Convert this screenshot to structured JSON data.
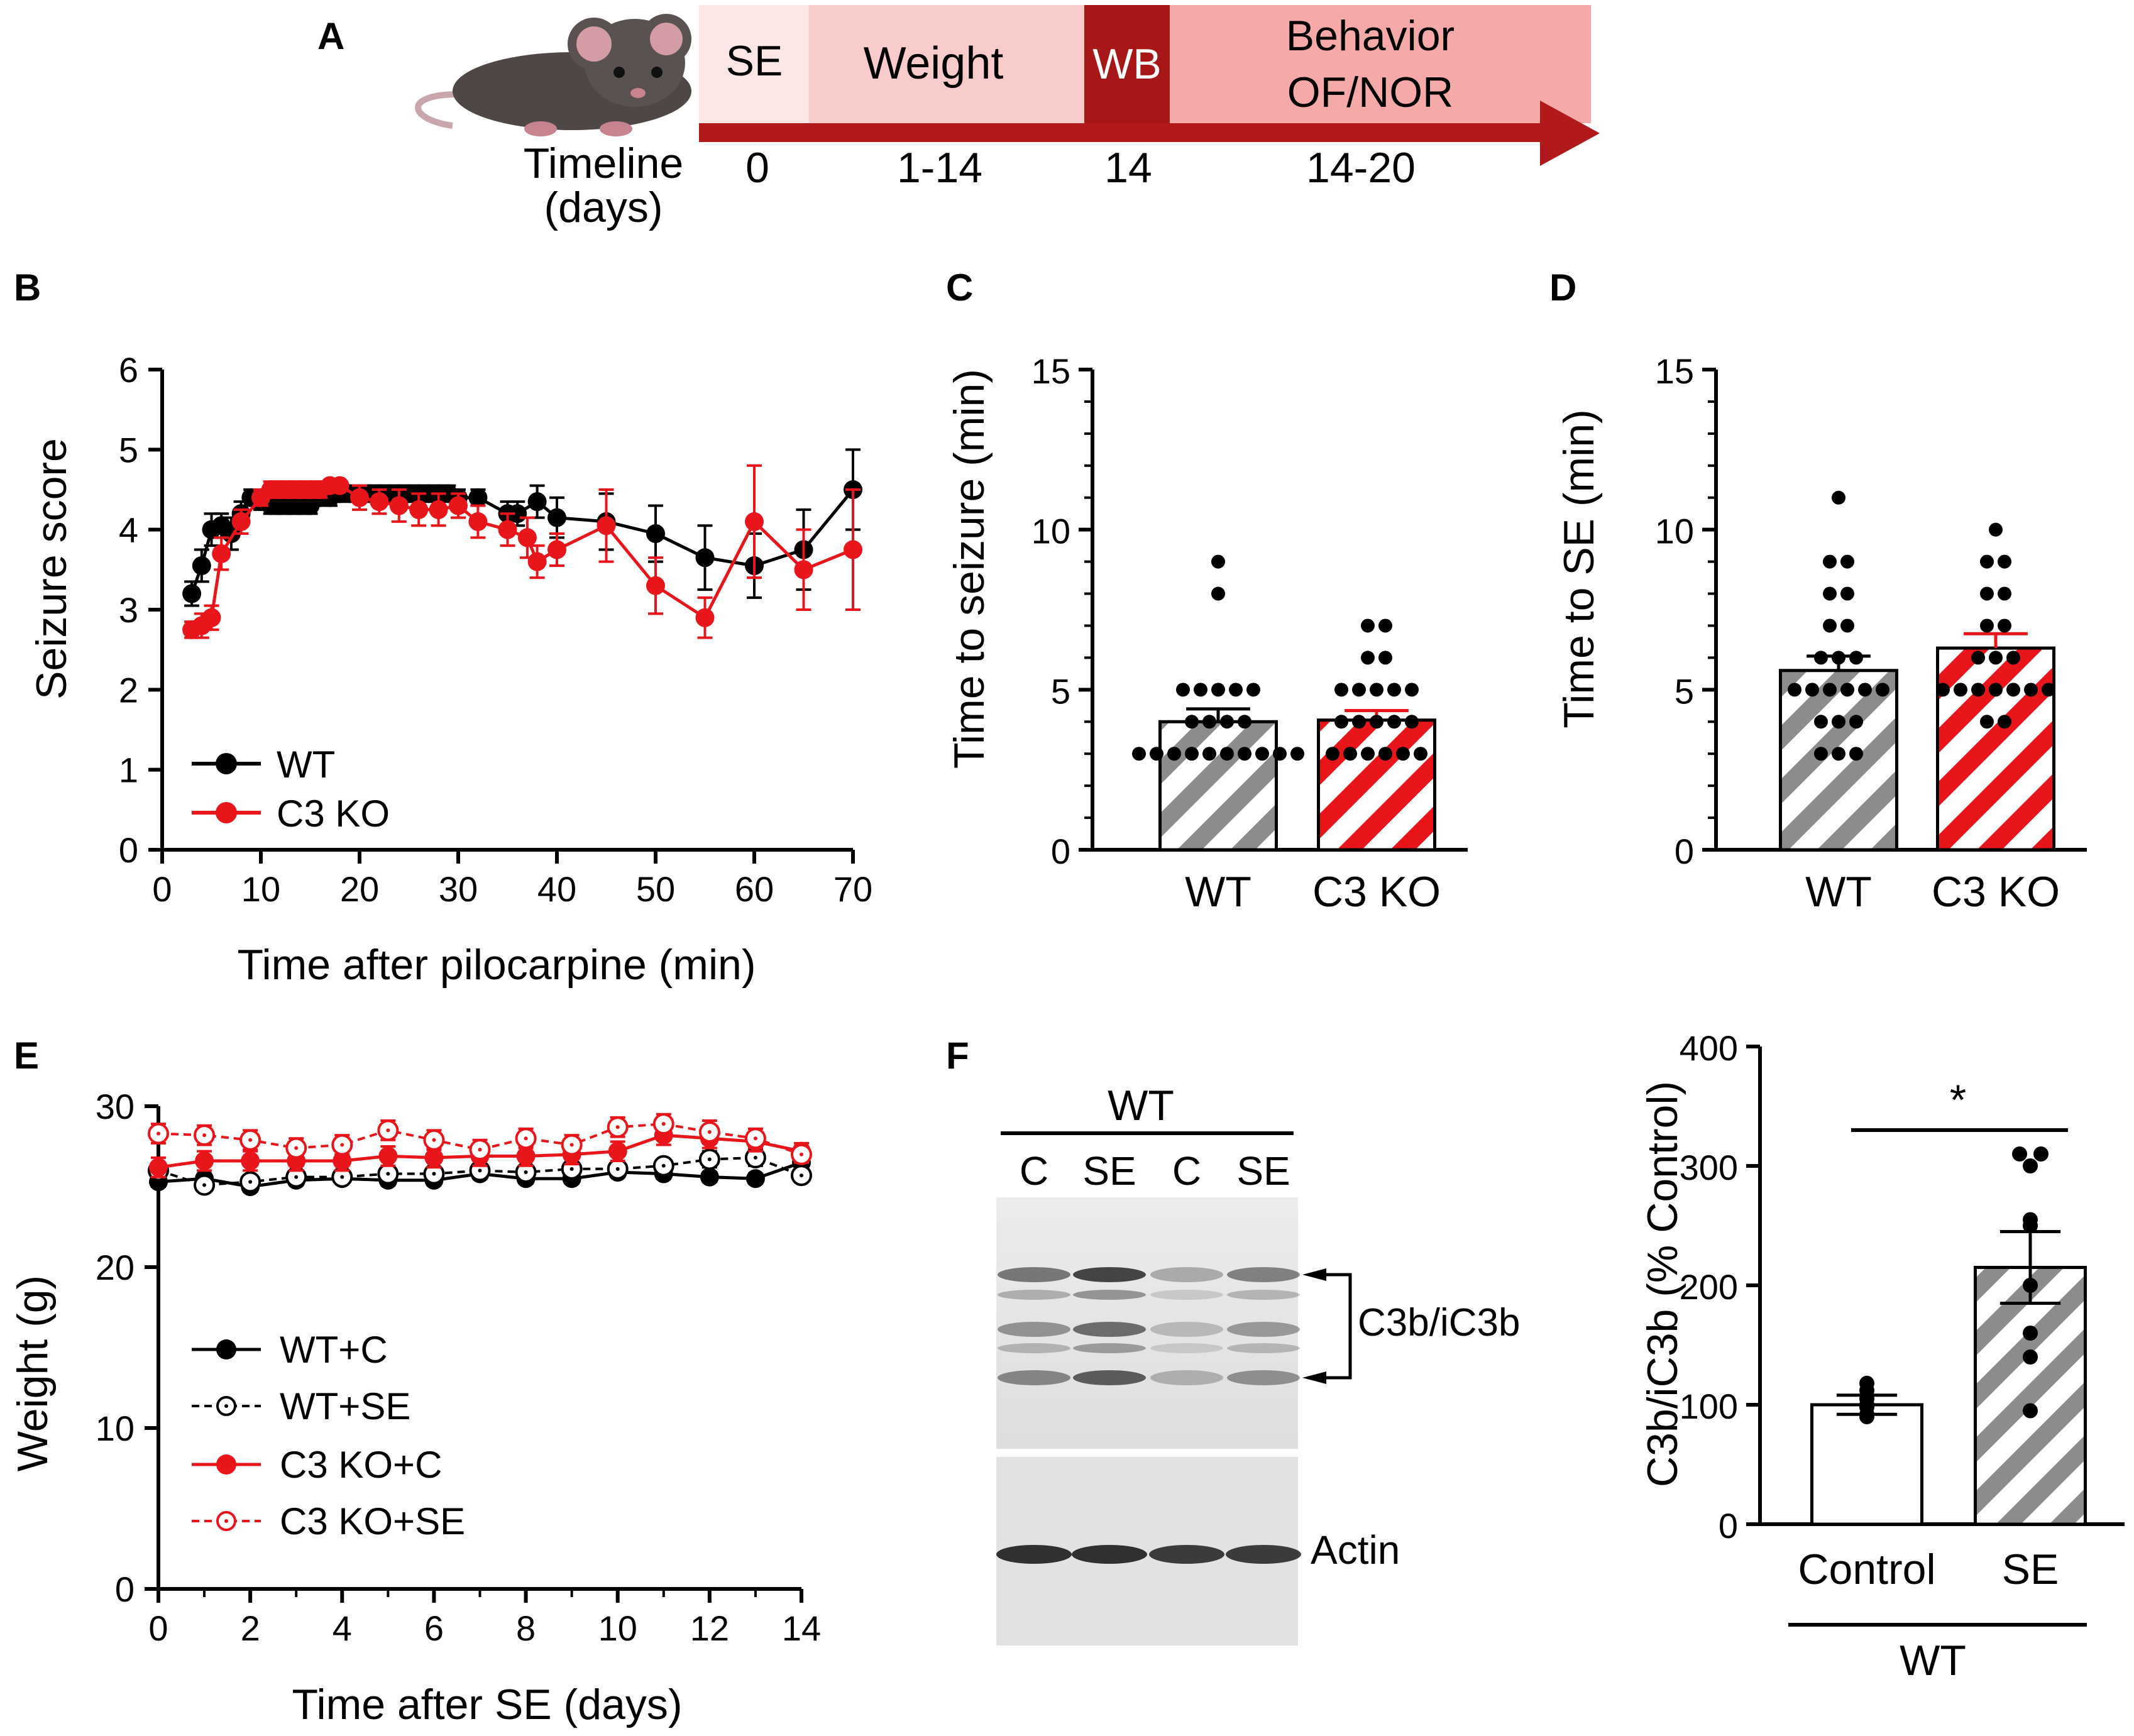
{
  "figure": {
    "panel_labels": [
      "A",
      "B",
      "C",
      "D",
      "E",
      "F"
    ],
    "colors": {
      "wt": "#000000",
      "c3ko": "#e8151b",
      "hatch_gray": "#8c8c8c",
      "timeline_arrow": "#b2191a",
      "timeline_se": "#fde6e6",
      "timeline_weight": "#f9cccc",
      "timeline_wb": "#a81717",
      "timeline_behavior": "#f6a9a9"
    }
  },
  "timeline": {
    "icon": "mouse-icon",
    "segments": [
      {
        "label": "SE",
        "day": "0"
      },
      {
        "label": "Weight",
        "day": "1-14"
      },
      {
        "label": "WB",
        "day": "14"
      },
      {
        "label": "Behavior",
        "label2": "OF/NOR",
        "day": "14-20"
      }
    ],
    "axis_label": "Timeline",
    "axis_label2": "(days)"
  },
  "chart_data": [
    {
      "id": "B",
      "type": "line",
      "xlabel": "Time after pilocarpine (min)",
      "ylabel": "Seizure score",
      "xlim": [
        0,
        70
      ],
      "ylim": [
        0,
        6
      ],
      "xticks": [
        0,
        10,
        20,
        30,
        40,
        50,
        60,
        70
      ],
      "yticks": [
        0,
        1,
        2,
        3,
        4,
        5,
        6
      ],
      "legend": "bottom-left",
      "series": [
        {
          "name": "WT",
          "color": "#000000",
          "x": [
            3,
            4,
            5,
            6,
            7,
            8,
            9,
            10,
            11,
            12,
            13,
            14,
            15,
            16,
            17,
            18,
            19,
            20,
            21,
            22,
            23,
            24,
            25,
            26,
            27,
            28,
            29,
            30,
            32,
            35,
            36,
            38,
            40,
            45,
            50,
            55,
            60,
            65,
            70
          ],
          "y": [
            3.2,
            3.55,
            4.0,
            4.05,
            3.95,
            4.2,
            4.4,
            4.35,
            4.3,
            4.3,
            4.3,
            4.3,
            4.3,
            4.4,
            4.4,
            4.45,
            4.45,
            4.45,
            4.45,
            4.45,
            4.45,
            4.45,
            4.45,
            4.45,
            4.45,
            4.45,
            4.45,
            4.4,
            4.4,
            4.2,
            4.2,
            4.35,
            4.15,
            4.1,
            3.95,
            3.65,
            3.55,
            3.75,
            4.5
          ],
          "err": [
            0.15,
            0.2,
            0.2,
            0.15,
            0.2,
            0.15,
            0.1,
            0.1,
            0.1,
            0.1,
            0.1,
            0.1,
            0.1,
            0.1,
            0.1,
            0.1,
            0.1,
            0.1,
            0.1,
            0.1,
            0.1,
            0.1,
            0.1,
            0.1,
            0.1,
            0.1,
            0.1,
            0.1,
            0.1,
            0.15,
            0.15,
            0.2,
            0.25,
            0.35,
            0.35,
            0.4,
            0.4,
            0.5,
            0.5
          ]
        },
        {
          "name": "C3 KO",
          "color": "#e8151b",
          "x": [
            3,
            4,
            5,
            6,
            8,
            10,
            11,
            12,
            13,
            14,
            15,
            16,
            17,
            18,
            20,
            22,
            24,
            26,
            28,
            30,
            32,
            35,
            37,
            38,
            40,
            45,
            50,
            55,
            60,
            65,
            70
          ],
          "y": [
            2.75,
            2.8,
            2.9,
            3.7,
            4.1,
            4.4,
            4.5,
            4.5,
            4.5,
            4.5,
            4.5,
            4.5,
            4.55,
            4.55,
            4.4,
            4.35,
            4.3,
            4.25,
            4.25,
            4.3,
            4.1,
            4.0,
            3.9,
            3.6,
            3.75,
            4.05,
            3.3,
            2.9,
            4.1,
            3.5,
            3.75
          ],
          "err": [
            0.1,
            0.15,
            0.15,
            0.2,
            0.15,
            0.1,
            0.1,
            0.1,
            0.1,
            0.1,
            0.1,
            0.1,
            0.05,
            0.05,
            0.15,
            0.15,
            0.2,
            0.2,
            0.2,
            0.15,
            0.2,
            0.2,
            0.25,
            0.2,
            0.2,
            0.45,
            0.35,
            0.25,
            0.7,
            0.5,
            0.75
          ]
        }
      ]
    },
    {
      "id": "C",
      "type": "bar",
      "ylabel": "Time to seizure (min)",
      "ylim": [
        0,
        15
      ],
      "yticks": [
        0,
        5,
        10,
        15
      ],
      "categories": [
        "WT",
        "C3 KO"
      ],
      "values": [
        4.0,
        4.05
      ],
      "sem": [
        0.4,
        0.3
      ],
      "points": [
        [
          9,
          8,
          5,
          5,
          5,
          5,
          5,
          4,
          4,
          4,
          4,
          3,
          3,
          3,
          3,
          3,
          3,
          3,
          3,
          3,
          3
        ],
        [
          7,
          7,
          6,
          6,
          5,
          5,
          5,
          5,
          5,
          4,
          4,
          4,
          4,
          4,
          3,
          3,
          3,
          3,
          3,
          3
        ]
      ]
    },
    {
      "id": "D",
      "type": "bar",
      "ylabel": "Time to SE (min)",
      "ylim": [
        0,
        15
      ],
      "yticks": [
        0,
        5,
        10,
        15
      ],
      "categories": [
        "WT",
        "C3 KO"
      ],
      "values": [
        5.6,
        6.3
      ],
      "sem": [
        0.45,
        0.45
      ],
      "points": [
        [
          11,
          9,
          9,
          8,
          8,
          7,
          7,
          6,
          6,
          6,
          5,
          5,
          5,
          5,
          5,
          5,
          4,
          4,
          4,
          3,
          3,
          3
        ],
        [
          10,
          9,
          9,
          8,
          8,
          7,
          7,
          6,
          6,
          6,
          5,
          5,
          5,
          5,
          5,
          5,
          5,
          4,
          4
        ]
      ]
    },
    {
      "id": "E",
      "type": "line",
      "xlabel": "Time after SE (days)",
      "ylabel": "Weight (g)",
      "xlim": [
        0,
        14
      ],
      "ylim": [
        0,
        30
      ],
      "xticks": [
        0,
        2,
        4,
        6,
        8,
        10,
        12,
        14
      ],
      "yticks": [
        0,
        10,
        20,
        30
      ],
      "legend": "bottom-left",
      "x": [
        0,
        1,
        2,
        3,
        4,
        5,
        6,
        7,
        8,
        9,
        10,
        11,
        12,
        13,
        14
      ],
      "series": [
        {
          "name": "WT+C",
          "color": "#000000",
          "filled": true,
          "dashed": false,
          "values": [
            25.3,
            25.5,
            25.0,
            25.4,
            25.5,
            25.4,
            25.4,
            25.8,
            25.5,
            25.5,
            25.9,
            25.8,
            25.6,
            25.5,
            26.5
          ],
          "err": [
            0.3,
            0.3,
            0.3,
            0.3,
            0.3,
            0.3,
            0.3,
            0.3,
            0.3,
            0.3,
            0.3,
            0.3,
            0.3,
            0.3,
            0.3
          ]
        },
        {
          "name": "WT+SE",
          "color": "#000000",
          "filled": false,
          "dashed": true,
          "values": [
            26.0,
            25.1,
            25.3,
            25.6,
            25.6,
            25.8,
            25.8,
            26.0,
            25.9,
            26.1,
            26.1,
            26.3,
            26.7,
            26.8,
            25.7
          ],
          "err": [
            0.4,
            0.4,
            0.4,
            0.4,
            0.4,
            0.4,
            0.4,
            0.4,
            0.4,
            0.4,
            0.4,
            0.4,
            0.5,
            0.5,
            0.4
          ]
        },
        {
          "name": "C3 KO+C",
          "color": "#e8151b",
          "filled": true,
          "dashed": false,
          "values": [
            26.2,
            26.6,
            26.6,
            26.6,
            26.6,
            26.9,
            26.8,
            26.9,
            26.9,
            27.0,
            27.2,
            28.2,
            28.0,
            27.8,
            27.2
          ],
          "err": [
            0.6,
            0.6,
            0.6,
            0.6,
            0.6,
            0.6,
            0.6,
            0.6,
            0.6,
            0.6,
            0.6,
            0.6,
            0.6,
            0.6,
            0.5
          ]
        },
        {
          "name": "C3 KO+SE",
          "color": "#e8151b",
          "filled": false,
          "dashed": true,
          "values": [
            28.3,
            28.2,
            27.9,
            27.4,
            27.6,
            28.5,
            27.9,
            27.3,
            28.0,
            27.6,
            28.7,
            28.9,
            28.4,
            28.0,
            27.0
          ],
          "err": [
            0.6,
            0.6,
            0.6,
            0.6,
            0.6,
            0.6,
            0.6,
            0.6,
            0.6,
            0.6,
            0.6,
            0.6,
            0.7,
            0.6,
            0.5
          ]
        }
      ]
    },
    {
      "id": "F-quant",
      "type": "bar",
      "ylabel": "C3b/iC3b (% Control)",
      "ylim": [
        0,
        400
      ],
      "yticks": [
        0,
        100,
        200,
        300,
        400
      ],
      "categories": [
        "Control",
        "SE"
      ],
      "group_label": "WT",
      "values": [
        100,
        215
      ],
      "sem": [
        8,
        30
      ],
      "points": [
        [
          118,
          112,
          105,
          100,
          98,
          92,
          90
        ],
        [
          310,
          310,
          300,
          255,
          250,
          200,
          160,
          140,
          95
        ]
      ],
      "significance": "*"
    }
  ],
  "blot": {
    "group_label": "WT",
    "lanes": [
      "C",
      "SE",
      "C",
      "SE"
    ],
    "bands": [
      {
        "label": "C3b/iC3b",
        "intensity": [
          0.55,
          0.8,
          0.3,
          0.5
        ]
      },
      {
        "label": "Actin",
        "intensity": [
          0.85,
          0.85,
          0.8,
          0.8
        ]
      }
    ]
  }
}
